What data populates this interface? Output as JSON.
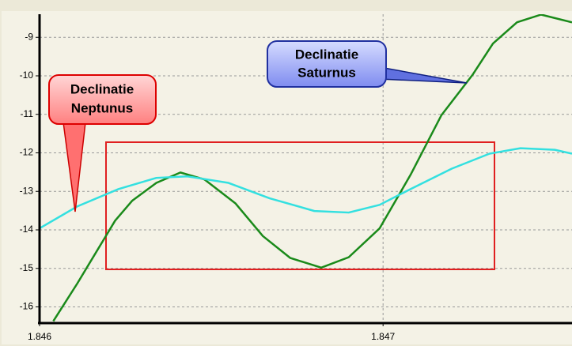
{
  "chart_data": {
    "type": "line",
    "xlim": [
      1.846,
      1.84755
    ],
    "xticks": [
      1.846,
      1.847
    ],
    "ylim": [
      -16.4,
      -8.4
    ],
    "yticks": [
      -9,
      -10,
      -11,
      -12,
      -13,
      -14,
      -15,
      -16
    ],
    "grid": true,
    "series": [
      {
        "color": "#1a8a1a",
        "x": [
          1.84604,
          1.84611,
          1.84622,
          1.84627,
          1.84634,
          1.84641,
          1.84648,
          1.84657,
          1.84665,
          1.84673,
          1.84682,
          1.8469,
          1.84699,
          1.84708,
          1.84717,
          1.84726,
          1.84732,
          1.84739,
          1.84746,
          1.84755
        ],
        "values": [
          -16.37,
          -15.39,
          -13.76,
          -13.24,
          -12.78,
          -12.51,
          -12.69,
          -13.31,
          -14.16,
          -14.73,
          -14.98,
          -14.71,
          -13.96,
          -12.57,
          -11.02,
          -9.98,
          -9.16,
          -8.61,
          -8.41,
          -8.61
        ]
      },
      {
        "color": "#33e0e0",
        "x": [
          1.846,
          1.84611,
          1.84623,
          1.84634,
          1.84643,
          1.84655,
          1.84667,
          1.8468,
          1.8469,
          1.84699,
          1.84708,
          1.8472,
          1.84731,
          1.8474,
          1.8475,
          1.84755
        ],
        "values": [
          -13.96,
          -13.39,
          -12.94,
          -12.65,
          -12.61,
          -12.78,
          -13.18,
          -13.51,
          -13.55,
          -13.35,
          -12.94,
          -12.41,
          -12.02,
          -11.88,
          -11.92,
          -12.02
        ]
      }
    ],
    "annotations": [
      {
        "lines": [
          "Declinatie",
          "Neptunus"
        ]
      },
      {
        "lines": [
          "Declinatie",
          "Saturnus"
        ]
      }
    ]
  }
}
